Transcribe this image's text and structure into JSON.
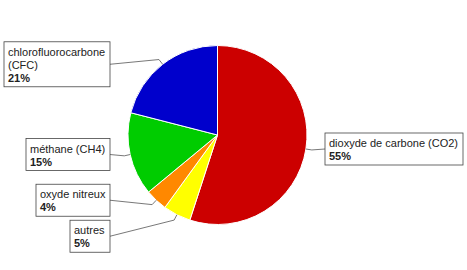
{
  "chart_data": {
    "type": "pie",
    "categories": [
      "dioxyde de carbone (CO2)",
      "autres",
      "oxyde nitreux",
      "méthane (CH4)",
      "chlorofluorocarbone\n(CFC)"
    ],
    "values": [
      55,
      5,
      4,
      15,
      21
    ],
    "value_labels": [
      "55%",
      "5%",
      "4%",
      "15%",
      "21%"
    ],
    "colors": [
      "#cc0000",
      "#ffff00",
      "#ff8800",
      "#00cc00",
      "#0000cc"
    ],
    "data_labels": true
  }
}
